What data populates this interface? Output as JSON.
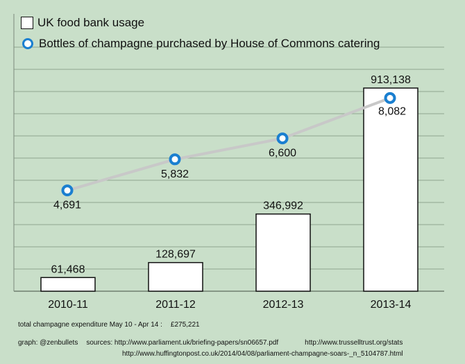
{
  "legend": {
    "bars_label": "UK food bank usage",
    "line_label": "Bottles of champagne purchased by House of Commons catering"
  },
  "colors": {
    "background": "#c9dfc9",
    "bar_fill": "#ffffff",
    "line": "#c8c8c8",
    "marker": "#1a7fd0"
  },
  "chart_data": {
    "type": "bar",
    "categories": [
      "2010-11",
      "2011-12",
      "2012-13",
      "2013-14"
    ],
    "series": [
      {
        "name": "UK food bank usage",
        "type": "bar",
        "values": [
          61468,
          128697,
          346992,
          913138
        ],
        "labels": [
          "61,468",
          "128,697",
          "346,992",
          "913,138"
        ]
      },
      {
        "name": "Bottles of champagne purchased by House of Commons catering",
        "type": "line",
        "values": [
          4691,
          5832,
          6600,
          8082
        ],
        "labels": [
          "4,691",
          "5,832",
          "6,600",
          "8,082"
        ]
      }
    ],
    "bar_ylim": [
      0,
      1000000
    ],
    "line_ylim": [
      0,
      12000
    ],
    "grid": true,
    "legend_position": "top-left"
  },
  "footer": {
    "expenditure_label": "total champagne expenditure May 10 - Apr 14 :",
    "expenditure_value": "£275,221",
    "credit": "graph: @zenbullets",
    "sources_label": "sources: http://www.parliament.uk/briefing-papers/sn06657.pdf",
    "source_trussell": "http://www.trusselltrust.org/stats",
    "source_huffington": "http://www.huffingtonpost.co.uk/2014/04/08/parliament-champagne-soars-_n_5104787.html"
  }
}
